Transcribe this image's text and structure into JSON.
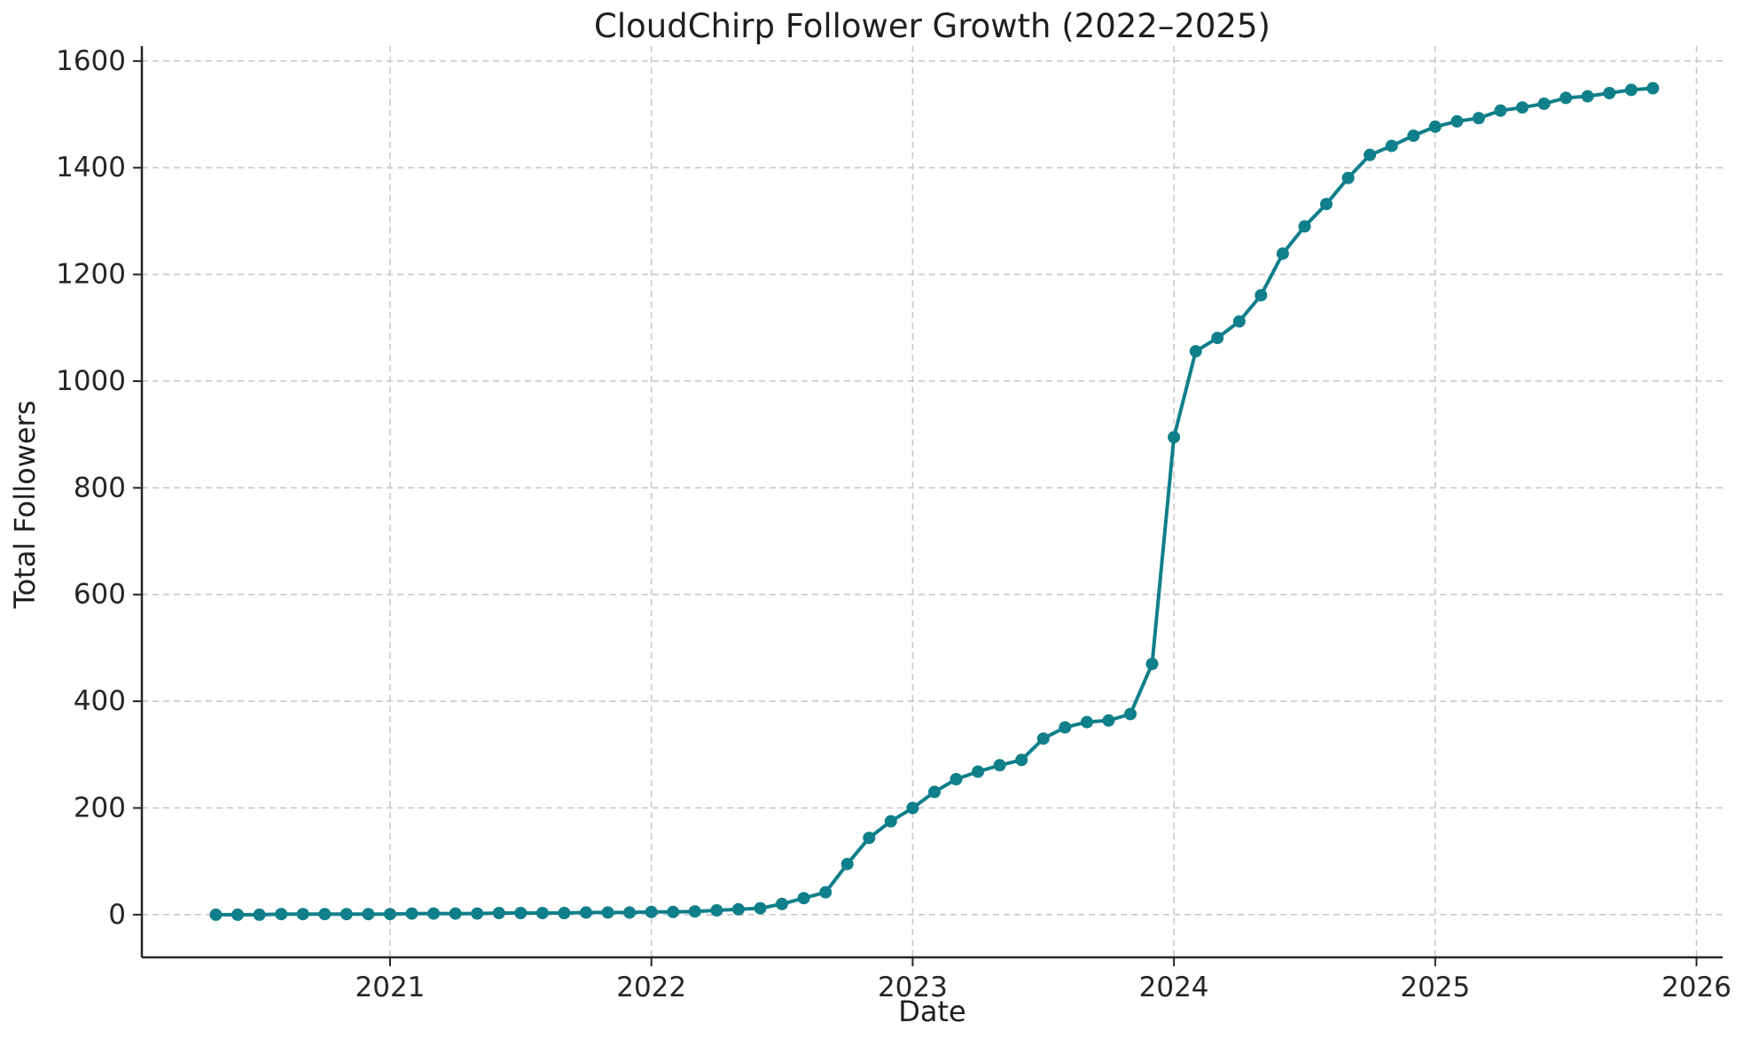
{
  "chart_data": {
    "type": "line",
    "title": "CloudChirp Follower Growth (2022–2025)",
    "xlabel": "Date",
    "ylabel": "Total Followers",
    "legend": "none",
    "grid": true,
    "line_color": "#0f7f8a",
    "marker": "circle",
    "grid_color": "#c9c9c9",
    "spine_color": "#262626",
    "x_tick_labels": [
      "2021",
      "2022",
      "2023",
      "2024",
      "2025",
      "2026"
    ],
    "x_tick_years": [
      2021,
      2022,
      2023,
      2024,
      2025,
      2026
    ],
    "y_tick_labels": [
      "0",
      "200",
      "400",
      "600",
      "800",
      "1000",
      "1200",
      "1400",
      "1600"
    ],
    "y_ticks": [
      0,
      200,
      400,
      600,
      800,
      1000,
      1200,
      1400,
      1600
    ],
    "x_domain_years": [
      2020.05,
      2026.1
    ],
    "y_domain": [
      -80,
      1628
    ],
    "x": [
      "2020-05",
      "2020-06",
      "2020-07",
      "2020-08",
      "2020-09",
      "2020-10",
      "2020-11",
      "2020-12",
      "2021-01",
      "2021-02",
      "2021-03",
      "2021-04",
      "2021-05",
      "2021-06",
      "2021-07",
      "2021-08",
      "2021-09",
      "2021-10",
      "2021-11",
      "2021-12",
      "2022-01",
      "2022-02",
      "2022-03",
      "2022-04",
      "2022-05",
      "2022-06",
      "2022-07",
      "2022-08",
      "2022-09",
      "2022-10",
      "2022-11",
      "2022-12",
      "2023-01",
      "2023-02",
      "2023-03",
      "2023-04",
      "2023-05",
      "2023-06",
      "2023-07",
      "2023-08",
      "2023-09",
      "2023-10",
      "2023-11",
      "2023-12",
      "2024-01",
      "2024-02",
      "2024-03",
      "2024-04",
      "2024-05",
      "2024-06",
      "2024-07",
      "2024-08",
      "2024-09",
      "2024-10",
      "2024-11",
      "2024-12",
      "2025-01",
      "2025-02",
      "2025-03",
      "2025-04",
      "2025-05",
      "2025-06",
      "2025-07",
      "2025-08",
      "2025-09",
      "2025-10",
      "2025-11"
    ],
    "values": [
      0,
      0,
      0,
      1,
      1,
      1,
      1,
      1,
      1,
      2,
      2,
      2,
      2,
      3,
      3,
      3,
      3,
      4,
      4,
      4,
      5,
      5,
      6,
      8,
      10,
      12,
      20,
      31,
      42,
      95,
      144,
      175,
      200,
      230,
      254,
      268,
      280,
      290,
      330,
      351,
      361,
      364,
      376,
      470,
      895,
      1056,
      1081,
      1112,
      1161,
      1239,
      1290,
      1332,
      1381,
      1424,
      1441,
      1460,
      1477,
      1487,
      1493,
      1507,
      1513,
      1520,
      1531,
      1534,
      1540,
      1546,
      1549
    ]
  }
}
